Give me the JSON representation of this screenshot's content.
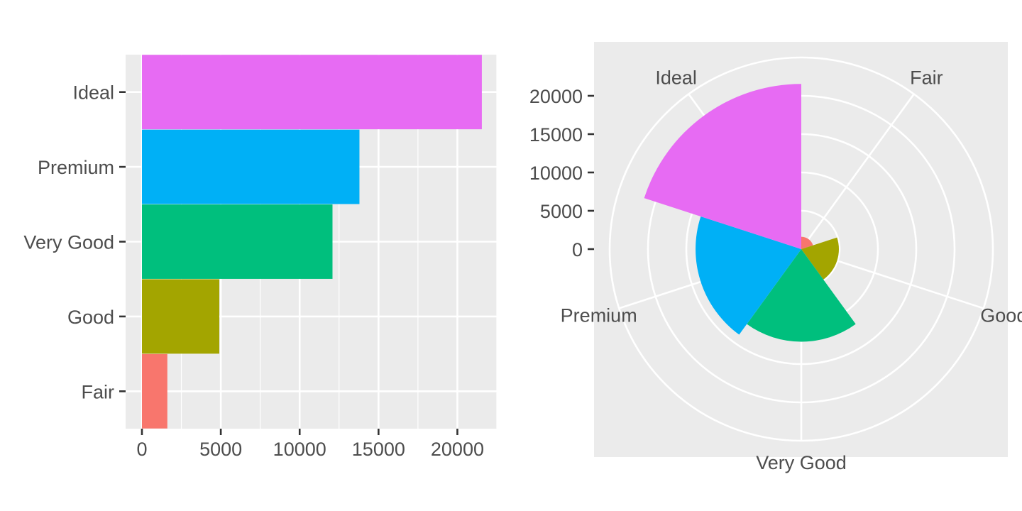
{
  "chart_data": [
    {
      "type": "bar",
      "orientation": "horizontal",
      "categories": [
        "Fair",
        "Good",
        "Very Good",
        "Premium",
        "Ideal"
      ],
      "values": [
        1610,
        4906,
        12082,
        13791,
        21551
      ],
      "colors": [
        "#F8766D",
        "#A3A500",
        "#00BF7D",
        "#00B0F6",
        "#E76BF3"
      ],
      "x_ticks": [
        "0",
        "5000",
        "10000",
        "15000",
        "20000"
      ],
      "xlim": [
        0,
        22500
      ],
      "grid": true,
      "legend": "none",
      "title": "",
      "xlabel": "",
      "ylabel": ""
    },
    {
      "type": "bar",
      "coordinates": "polar",
      "categories": [
        "Fair",
        "Good",
        "Very Good",
        "Premium",
        "Ideal"
      ],
      "values": [
        1610,
        4906,
        12082,
        13791,
        21551
      ],
      "colors": [
        "#F8766D",
        "#A3A500",
        "#00BF7D",
        "#00B0F6",
        "#E76BF3"
      ],
      "radial_ticks": [
        "0",
        "5000",
        "10000",
        "15000",
        "20000"
      ],
      "rlim": [
        0,
        25000
      ],
      "grid": true,
      "legend": "none",
      "title": "",
      "xlabel": "",
      "ylabel": ""
    }
  ],
  "style": {
    "panel_bg": "#EBEBEB",
    "grid_color": "#FFFFFF",
    "axis_text_color": "#4D4D4D",
    "tick_color": "#333333"
  }
}
